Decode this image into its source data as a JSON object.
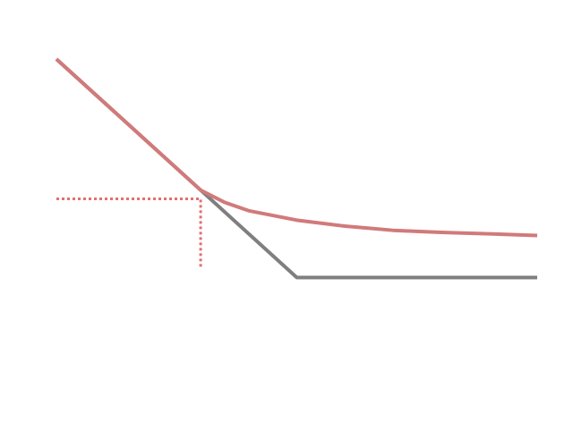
{
  "chart_data": {
    "type": "line",
    "title": "",
    "xlabel": "",
    "ylabel": "",
    "grid": false,
    "legend": "none",
    "xlim": [
      0,
      10
    ],
    "ylim": [
      0,
      10
    ],
    "series": [
      {
        "color": "#7f7f7f",
        "style": "solid",
        "points": [
          [
            0,
            9.0
          ],
          [
            5,
            2.75
          ],
          [
            10,
            2.75
          ]
        ]
      },
      {
        "color": "#d17a7a",
        "style": "solid",
        "points": [
          [
            0,
            9.0
          ],
          [
            1,
            7.75
          ],
          [
            2,
            6.5
          ],
          [
            3,
            5.25
          ],
          [
            3.5,
            4.9
          ],
          [
            4,
            4.66
          ],
          [
            5,
            4.39
          ],
          [
            6,
            4.22
          ],
          [
            7,
            4.1
          ],
          [
            8,
            4.04
          ],
          [
            9,
            4.0
          ],
          [
            10,
            3.95
          ]
        ]
      }
    ],
    "reference_lines": [
      {
        "color": "#e07070",
        "style": "dotted",
        "points": [
          [
            0,
            5.0
          ],
          [
            3.0,
            5.0
          ],
          [
            3.0,
            3.0
          ]
        ]
      }
    ]
  }
}
